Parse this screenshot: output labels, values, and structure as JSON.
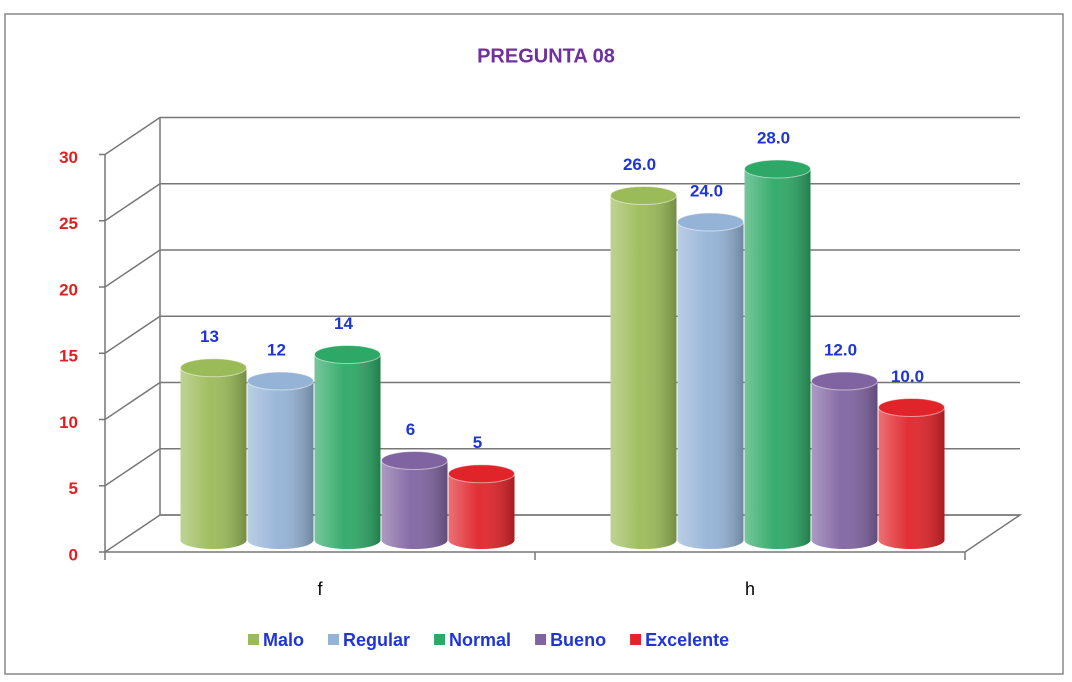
{
  "chart_data": {
    "type": "bar3d",
    "title": "PREGUNTA 08",
    "categories": [
      "f",
      "h"
    ],
    "series": [
      {
        "name": "Malo",
        "color": "#9bbb59",
        "values": [
          13,
          26
        ],
        "value_labels": [
          "13",
          "26.0"
        ]
      },
      {
        "name": "Regular",
        "color": "#95b3d7",
        "values": [
          12,
          24
        ],
        "value_labels": [
          "12",
          "24.0"
        ]
      },
      {
        "name": "Normal",
        "color": "#2ea866",
        "values": [
          14,
          28
        ],
        "value_labels": [
          "14",
          "28.0"
        ]
      },
      {
        "name": "Bueno",
        "color": "#8064a2",
        "values": [
          6,
          12
        ],
        "value_labels": [
          "6",
          "12.0"
        ]
      },
      {
        "name": "Excelente",
        "color": "#e0242a",
        "values": [
          5,
          10
        ],
        "value_labels": [
          "5",
          "10.0"
        ]
      }
    ],
    "ylim": [
      0,
      30
    ],
    "yticks": [
      0,
      5,
      10,
      15,
      20,
      25,
      30
    ],
    "grid": true,
    "legend": "bottom"
  }
}
